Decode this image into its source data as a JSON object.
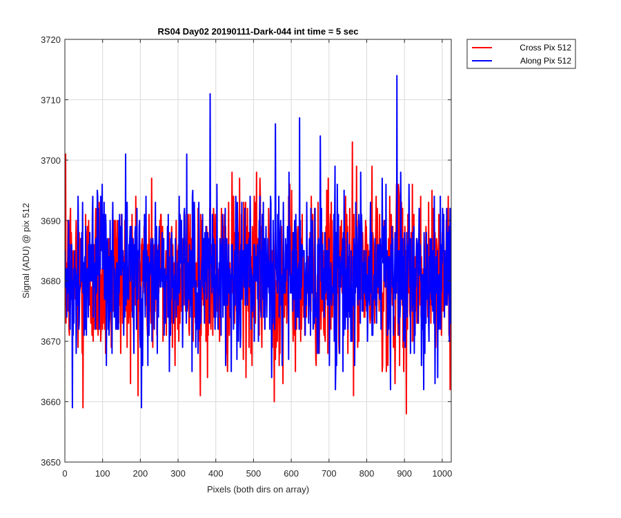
{
  "chart_data": {
    "type": "line",
    "title": "RS04 Day02 20190111-Dark-044 int time = 5 sec",
    "xlabel": "Pixels (both dirs on array)",
    "ylabel": "Signal (ADU) @ pix 512",
    "xlim": [
      0,
      1024
    ],
    "ylim": [
      3650,
      3720
    ],
    "xticks": [
      0,
      100,
      200,
      300,
      400,
      500,
      600,
      700,
      800,
      900,
      1000
    ],
    "yticks": [
      3650,
      3660,
      3670,
      3680,
      3690,
      3700,
      3710,
      3720
    ],
    "grid": true,
    "legend_position": "outside-top-right",
    "series": [
      {
        "name": "Cross Pix 512",
        "color": "#ff0000",
        "mean": 3681,
        "std": 7,
        "n_points": 1024,
        "seed": 12345,
        "min": 3658,
        "max": 3703
      },
      {
        "name": "Along Pix 512",
        "color": "#0000ff",
        "mean": 3681,
        "std": 6.5,
        "n_points": 1024,
        "seed": 67890,
        "min": 3659,
        "max": 3714
      }
    ],
    "peaks": [
      {
        "series": 1,
        "x": 385,
        "y": 3711
      },
      {
        "series": 1,
        "x": 880,
        "y": 3714
      },
      {
        "series": 1,
        "x": 622,
        "y": 3707
      },
      {
        "series": 1,
        "x": 558,
        "y": 3706
      },
      {
        "series": 1,
        "x": 203,
        "y": 3659
      },
      {
        "series": 1,
        "x": 20,
        "y": 3659
      },
      {
        "series": 0,
        "x": 905,
        "y": 3658
      },
      {
        "series": 0,
        "x": 48,
        "y": 3659
      },
      {
        "series": 0,
        "x": 555,
        "y": 3660
      },
      {
        "series": 0,
        "x": 762,
        "y": 3703
      },
      {
        "series": 0,
        "x": 2,
        "y": 3701
      }
    ]
  }
}
